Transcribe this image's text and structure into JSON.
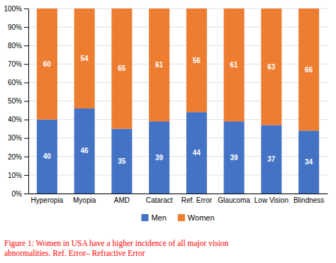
{
  "chart_data": {
    "type": "bar",
    "stacked": true,
    "categories": [
      "Hyperopia",
      "Myopia",
      "AMD",
      "Cataract",
      "Ref. Error",
      "Glaucoma",
      "Low Vision",
      "Blindness"
    ],
    "series": [
      {
        "name": "Men",
        "color": "#4472C4",
        "values": [
          40,
          46,
          35,
          39,
          44,
          39,
          37,
          34
        ]
      },
      {
        "name": "Women",
        "color": "#ED7D31",
        "values": [
          60,
          54,
          65,
          61,
          56,
          61,
          63,
          66
        ]
      }
    ],
    "ylim": [
      0,
      100
    ],
    "yticks": [
      {
        "value": 0,
        "label": "0%"
      },
      {
        "value": 10,
        "label": "10%"
      },
      {
        "value": 20,
        "label": "20%"
      },
      {
        "value": 30,
        "label": "30%"
      },
      {
        "value": 40,
        "label": "40%"
      },
      {
        "value": 50,
        "label": "50%"
      },
      {
        "value": 60,
        "label": "60%"
      },
      {
        "value": 70,
        "label": "70%"
      },
      {
        "value": 80,
        "label": "80%"
      },
      {
        "value": 90,
        "label": "90%"
      },
      {
        "value": 100,
        "label": "100%"
      }
    ],
    "grid": true,
    "data_labels": true,
    "legend": "bottom",
    "annotations": [
      {
        "text": "Figure 1: Women in USA have a higher incidence of all major vision\nabnormalities. Ref. Error– Refractive Error",
        "color": "red"
      }
    ]
  }
}
